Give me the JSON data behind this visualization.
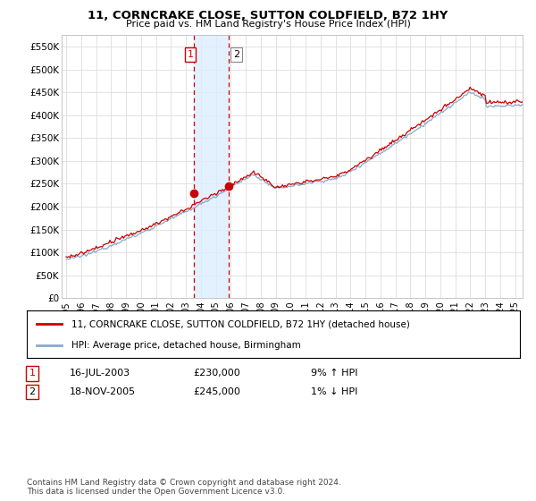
{
  "title": "11, CORNCRAKE CLOSE, SUTTON COLDFIELD, B72 1HY",
  "subtitle": "Price paid vs. HM Land Registry's House Price Index (HPI)",
  "legend_line1": "11, CORNCRAKE CLOSE, SUTTON COLDFIELD, B72 1HY (detached house)",
  "legend_line2": "HPI: Average price, detached house, Birmingham",
  "transaction1_date": "16-JUL-2003",
  "transaction1_price": "£230,000",
  "transaction1_hpi": "9% ↑ HPI",
  "transaction2_date": "18-NOV-2005",
  "transaction2_price": "£245,000",
  "transaction2_hpi": "1% ↓ HPI",
  "footnote": "Contains HM Land Registry data © Crown copyright and database right 2024.\nThis data is licensed under the Open Government Licence v3.0.",
  "ylim": [
    0,
    575000
  ],
  "yticks": [
    0,
    50000,
    100000,
    150000,
    200000,
    250000,
    300000,
    350000,
    400000,
    450000,
    500000,
    550000
  ],
  "ytick_labels": [
    "£0",
    "£50K",
    "£100K",
    "£150K",
    "£200K",
    "£250K",
    "£300K",
    "£350K",
    "£400K",
    "£450K",
    "£500K",
    "£550K"
  ],
  "xlim_start": 1994.7,
  "xlim_end": 2025.5,
  "xticks": [
    1995,
    1996,
    1997,
    1998,
    1999,
    2000,
    2001,
    2002,
    2003,
    2004,
    2005,
    2006,
    2007,
    2008,
    2009,
    2010,
    2011,
    2012,
    2013,
    2014,
    2015,
    2016,
    2017,
    2018,
    2019,
    2020,
    2021,
    2022,
    2023,
    2024,
    2025
  ],
  "transaction1_x": 2003.54,
  "transaction2_x": 2005.88,
  "property_color": "#cc0000",
  "hpi_color": "#88aacc",
  "grid_color": "#dddddd",
  "bg_color": "#ffffff",
  "shade_color": "#ddeeff",
  "point1_y": 230000,
  "point2_y": 245000
}
